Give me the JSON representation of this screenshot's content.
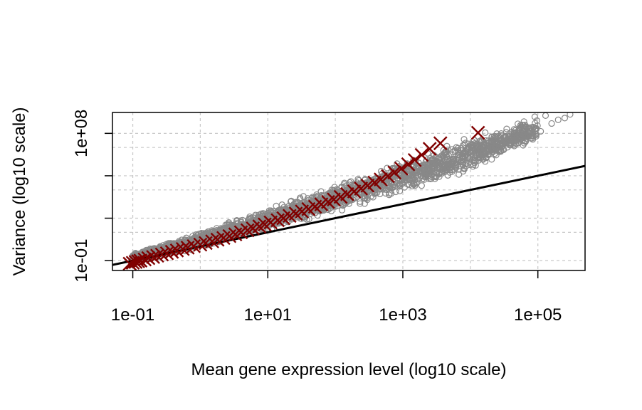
{
  "chart_data": {
    "type": "scatter",
    "title": "",
    "xlabel": "Mean gene expression level (log10 scale)",
    "ylabel": "Variance (log10 scale)",
    "x_scale": "log10",
    "y_scale": "log10",
    "xlim": [
      0.05,
      500000
    ],
    "ylim": [
      0.02,
      3000000000
    ],
    "grid": true,
    "legend": "none",
    "x_ticks": [
      {
        "value": 0.1,
        "label": "1e-01"
      },
      {
        "value": 10,
        "label": "1e+01"
      },
      {
        "value": 1000,
        "label": "1e+03"
      },
      {
        "value": 100000,
        "label": "1e+05"
      }
    ],
    "y_ticks": [
      {
        "value": 0.1,
        "label": "1e-01"
      },
      {
        "value": 100000000,
        "label": "1e+08"
      }
    ],
    "y_minor_ticks": [
      100,
      100000
    ],
    "x_grid": [
      0.1,
      1,
      10,
      100,
      1000,
      10000,
      100000
    ],
    "y_grid": [
      0.1,
      10,
      100,
      10000,
      100000,
      10000000,
      100000000
    ],
    "series": [
      {
        "kind": "points",
        "marker": "circle",
        "color": "#888888",
        "band": [
          {
            "x": 0.1,
            "low": 0.06,
            "high": 0.35
          },
          {
            "x": 1,
            "low": 0.6,
            "high": 12
          },
          {
            "x": 10,
            "low": 10,
            "high": 600
          },
          {
            "x": 100,
            "low": 200,
            "high": 30000
          },
          {
            "x": 1000,
            "low": 4000,
            "high": 2000000
          },
          {
            "x": 10000,
            "low": 150000,
            "high": 100000000
          },
          {
            "x": 100000,
            "low": 20000000,
            "high": 2000000000
          }
        ],
        "outliers": [
          [
            90000,
            1500000000
          ],
          [
            130000,
            1800000000
          ],
          [
            200000,
            900000000
          ],
          [
            300000,
            2200000000
          ],
          [
            250000,
            1200000000
          ],
          [
            60000,
            250000000
          ],
          [
            160000,
            500000000
          ],
          [
            110000,
            140000000
          ]
        ]
      },
      {
        "kind": "points",
        "marker": "x",
        "color": "#800000",
        "points": [
          [
            0.09,
            0.06
          ],
          [
            0.1,
            0.07
          ],
          [
            0.11,
            0.08
          ],
          [
            0.12,
            0.09
          ],
          [
            0.13,
            0.1
          ],
          [
            0.15,
            0.12
          ],
          [
            0.17,
            0.15
          ],
          [
            0.2,
            0.18
          ],
          [
            0.23,
            0.22
          ],
          [
            0.27,
            0.27
          ],
          [
            0.32,
            0.33
          ],
          [
            0.38,
            0.42
          ],
          [
            0.45,
            0.52
          ],
          [
            0.55,
            0.66
          ],
          [
            0.65,
            0.82
          ],
          [
            0.8,
            1.05
          ],
          [
            1,
            1.35
          ],
          [
            1.2,
            1.75
          ],
          [
            1.5,
            2.3
          ],
          [
            1.8,
            3.0
          ],
          [
            2.2,
            4.0
          ],
          [
            2.7,
            5.4
          ],
          [
            3.3,
            7.2
          ],
          [
            4,
            10
          ],
          [
            5,
            14
          ],
          [
            6,
            19
          ],
          [
            7.5,
            26
          ],
          [
            9,
            36
          ],
          [
            11,
            50
          ],
          [
            14,
            72
          ],
          [
            17,
            100
          ],
          [
            21,
            145
          ],
          [
            26,
            210
          ],
          [
            32,
            300
          ],
          [
            40,
            440
          ],
          [
            50,
            650
          ],
          [
            62,
            950
          ],
          [
            78,
            1400
          ],
          [
            95,
            2100
          ],
          [
            120,
            3200
          ],
          [
            150,
            5000
          ],
          [
            190,
            7800
          ],
          [
            240,
            12500
          ],
          [
            300,
            20000
          ],
          [
            380,
            33000
          ],
          [
            470,
            55000
          ],
          [
            600,
            95000
          ],
          [
            750,
            170000
          ],
          [
            950,
            320000
          ],
          [
            1200,
            650000
          ],
          [
            1500,
            1300000
          ],
          [
            1900,
            3000000
          ],
          [
            2500,
            8000000
          ],
          [
            3600,
            20000000
          ],
          [
            13000,
            110000000
          ]
        ]
      },
      {
        "kind": "line",
        "color": "#000000",
        "slope_loglog": 1,
        "intercept": 1,
        "from": 0.05,
        "to": 500000
      }
    ]
  }
}
